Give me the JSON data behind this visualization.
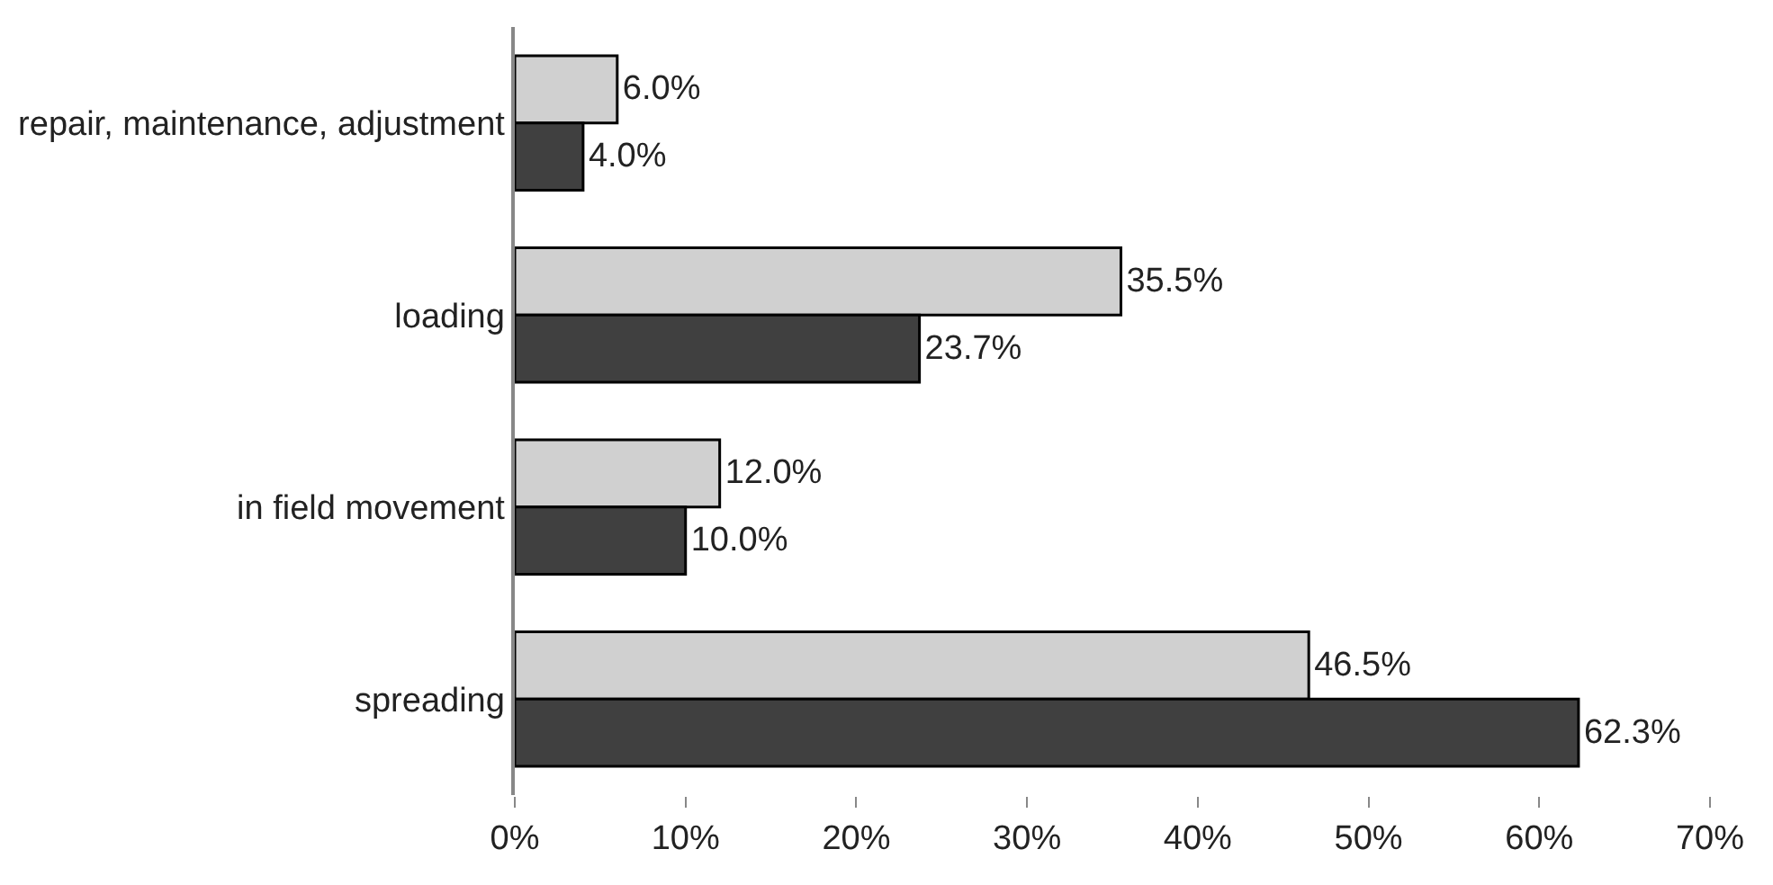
{
  "chart_data": {
    "type": "bar",
    "orientation": "horizontal",
    "categories": [
      "repair, maintenance, adjustment",
      "loading",
      "in field movement",
      "spreading"
    ],
    "series": [
      {
        "color": "#d0d0d0",
        "values": [
          6.0,
          35.5,
          12.0,
          46.5
        ],
        "value_labels": [
          "6.0%",
          "35.5%",
          "12.0%",
          "46.5%"
        ]
      },
      {
        "color": "#404040",
        "values": [
          4.0,
          23.7,
          10.0,
          62.3
        ],
        "value_labels": [
          "4.0%",
          "23.7%",
          "10.0%",
          "62.3%"
        ]
      }
    ],
    "xlim": [
      0,
      70
    ],
    "xticks": [
      {
        "value": 0,
        "label": "0%"
      },
      {
        "value": 10,
        "label": "10%"
      },
      {
        "value": 20,
        "label": "20%"
      },
      {
        "value": 30,
        "label": "30%"
      },
      {
        "value": 40,
        "label": "40%"
      },
      {
        "value": 50,
        "label": "50%"
      },
      {
        "value": 60,
        "label": "60%"
      },
      {
        "value": 70,
        "label": "70%"
      }
    ]
  }
}
